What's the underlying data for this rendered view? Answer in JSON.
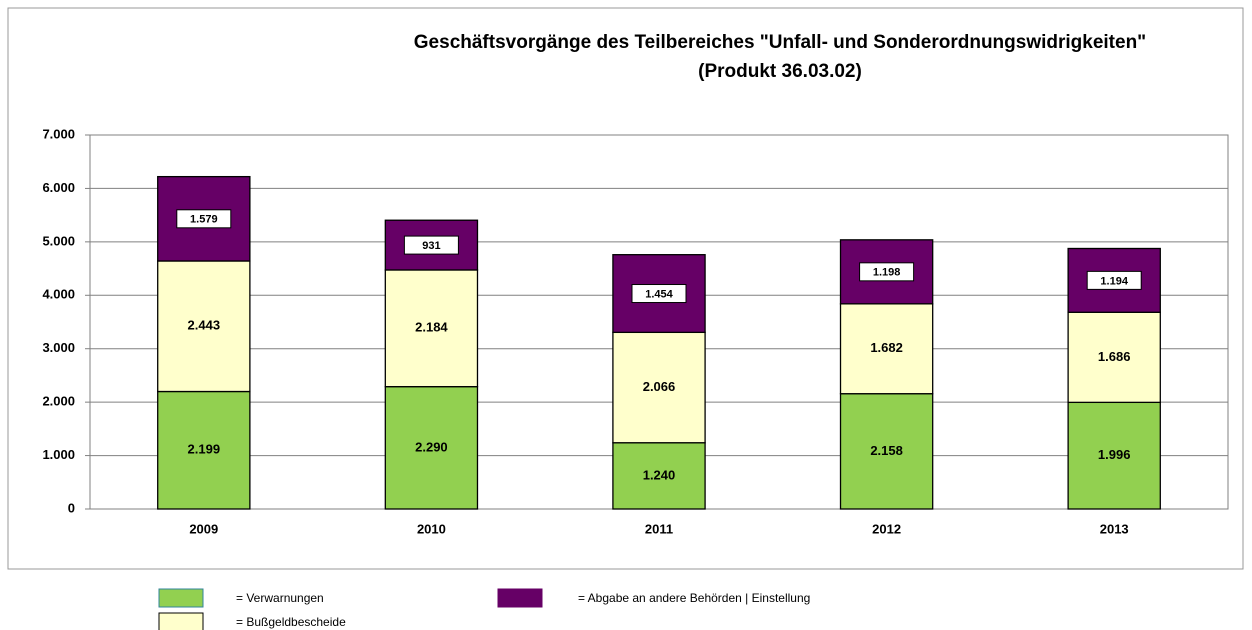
{
  "chart_data": {
    "type": "stacked_bar",
    "title": "Geschäftsvorgänge des Teilbereiches \"Unfall- und Sonderordnungswidrigkeiten\"",
    "subtitle": "(Produkt 36.03.02)",
    "categories": [
      "2009",
      "2010",
      "2011",
      "2012",
      "2013"
    ],
    "series": [
      {
        "name": "= Verwarnungen",
        "color": "#92d050",
        "values": [
          2199,
          2290,
          1240,
          2158,
          1996
        ],
        "value_labels": [
          "2.199",
          "2.290",
          "1.240",
          "2.158",
          "1.996"
        ]
      },
      {
        "name": "= Bußgeldbescheide",
        "color": "#ffffcc",
        "values": [
          2443,
          2184,
          2066,
          1682,
          1686
        ],
        "value_labels": [
          "2.443",
          "2.184",
          "2.066",
          "1.682",
          "1.686"
        ]
      },
      {
        "name": "= Abgabe an andere Behörden | Einstellung",
        "color": "#660066",
        "values": [
          1579,
          931,
          1454,
          1198,
          1194
        ],
        "value_labels": [
          "1.579",
          "931",
          "1.454",
          "1.198",
          "1.194"
        ]
      }
    ],
    "ylim": [
      0,
      7000
    ],
    "yticks": [
      0,
      {
        "value": 1000,
        "label": "1.000"
      },
      {
        "value": 2000,
        "label": "2.000"
      },
      {
        "value": 3000,
        "label": "3.000"
      },
      {
        "value": 4000,
        "label": "4.000"
      },
      {
        "value": 5000,
        "label": "5.000"
      },
      {
        "value": 6000,
        "label": "6.000"
      },
      {
        "value": 7000,
        "label": "7.000"
      }
    ],
    "grid": true
  }
}
